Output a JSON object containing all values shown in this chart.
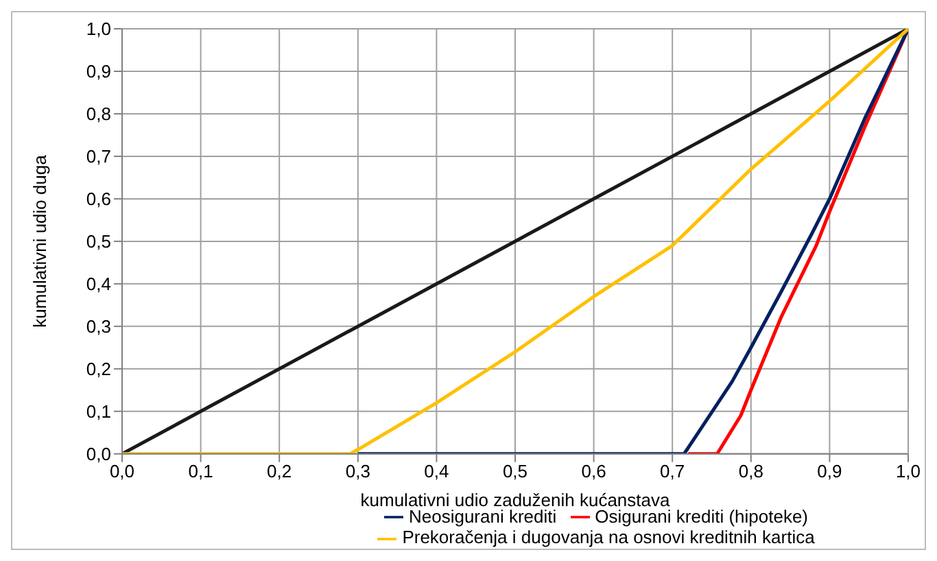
{
  "chart_data": {
    "type": "line",
    "xlabel": "kumulativni udio zaduženih kućanstava",
    "ylabel": "kumulativni udio duga",
    "xlim": [
      0,
      1
    ],
    "ylim": [
      0,
      1
    ],
    "xticks": [
      {
        "value": 0,
        "label": "0,0"
      },
      {
        "value": 0.1,
        "label": "0,1"
      },
      {
        "value": 0.2,
        "label": "0,2"
      },
      {
        "value": 0.3,
        "label": "0,3"
      },
      {
        "value": 0.4,
        "label": "0,4"
      },
      {
        "value": 0.5,
        "label": "0,5"
      },
      {
        "value": 0.6,
        "label": "0,6"
      },
      {
        "value": 0.7,
        "label": "0,7"
      },
      {
        "value": 0.8,
        "label": "0,8"
      },
      {
        "value": 0.9,
        "label": "0,9"
      },
      {
        "value": 1,
        "label": "1,0"
      }
    ],
    "yticks": [
      {
        "value": 0,
        "label": "0,0"
      },
      {
        "value": 0.1,
        "label": "0,1"
      },
      {
        "value": 0.2,
        "label": "0,2"
      },
      {
        "value": 0.3,
        "label": "0,3"
      },
      {
        "value": 0.4,
        "label": "0,4"
      },
      {
        "value": 0.5,
        "label": "0,5"
      },
      {
        "value": 0.6,
        "label": "0,6"
      },
      {
        "value": 0.7,
        "label": "0,7"
      },
      {
        "value": 0.8,
        "label": "0,8"
      },
      {
        "value": 0.9,
        "label": "0,9"
      },
      {
        "value": 1,
        "label": "1,0"
      }
    ],
    "grid": true,
    "legend": "bottom",
    "marker": "none",
    "line_style": "solid",
    "series": [
      {
        "color": "#1a1a1a",
        "x": [
          0,
          1
        ],
        "values": [
          0,
          1
        ]
      },
      {
        "name": "Osigurani krediti (hipoteke)",
        "color": "#ff0000",
        "x": [
          0.72,
          0.757,
          0.787,
          0.8,
          0.838,
          0.883,
          0.9,
          0.945,
          1
        ],
        "values": [
          0,
          0,
          0.09,
          0.15,
          0.32,
          0.49,
          0.57,
          0.77,
          1
        ]
      },
      {
        "name": "Neosigurani krediti",
        "color": "#002060",
        "x": [
          0.3,
          0.715,
          0.776,
          0.8,
          0.838,
          0.878,
          0.9,
          0.945,
          1
        ],
        "values": [
          0,
          0,
          0.17,
          0.25,
          0.38,
          0.52,
          0.6,
          0.79,
          1
        ]
      },
      {
        "name": "Prekoračenja i dugovanja na osnovi kreditnih kartica",
        "color": "#ffc000",
        "x": [
          0,
          0.29,
          0.3,
          0.4,
          0.5,
          0.6,
          0.7,
          0.8,
          0.9,
          1
        ],
        "values": [
          0,
          0,
          0.01,
          0.12,
          0.24,
          0.37,
          0.49,
          0.67,
          0.83,
          1
        ]
      }
    ]
  }
}
